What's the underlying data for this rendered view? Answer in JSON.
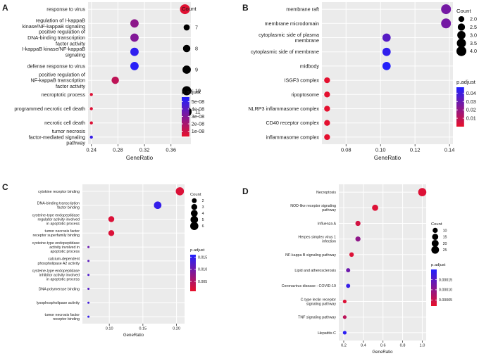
{
  "chart_data": [
    {
      "panel": "A",
      "type": "scatter",
      "xlabel": "GeneRatio",
      "xlim": [
        0.235,
        0.39
      ],
      "xticks": [
        "0.24",
        "0.28",
        "0.32",
        "0.36"
      ],
      "xtick_values": [
        0.24,
        0.28,
        0.32,
        0.36
      ],
      "categories": [
        [
          "response to virus"
        ],
        [
          "regulation of I-kappaB",
          "kinase/NF-kappaB signaling"
        ],
        [
          "positive regulation of",
          "DNA-binding transcription",
          "factor activity"
        ],
        [
          "I-kappaB kinase/NF-kappaB",
          "signaling"
        ],
        [
          "defense response to virus"
        ],
        [
          "positive regulation of",
          "NF-kappaB transcription",
          "factor activity"
        ],
        [
          "necroptotic process"
        ],
        [
          "programmed necrotic cell death"
        ],
        [
          "necrotic cell death"
        ],
        [
          "tumor necrosis",
          "factor-mediated signaling",
          "pathway"
        ]
      ],
      "points": [
        {
          "x": 0.381,
          "count": 11,
          "padj": 5e-09
        },
        {
          "x": 0.305,
          "count": 9,
          "padj": 2.7e-08
        },
        {
          "x": 0.305,
          "count": 9,
          "padj": 3e-08
        },
        {
          "x": 0.305,
          "count": 9,
          "padj": 5.2e-08
        },
        {
          "x": 0.305,
          "count": 9,
          "padj": 5.4e-08
        },
        {
          "x": 0.276,
          "count": 8,
          "padj": 1.4e-08
        },
        {
          "x": 0.24,
          "count": 6,
          "padj": 6e-09
        },
        {
          "x": 0.24,
          "count": 6,
          "padj": 6e-09
        },
        {
          "x": 0.24,
          "count": 6,
          "padj": 6e-09
        },
        {
          "x": 0.24,
          "count": 6,
          "padj": 5e-08
        }
      ],
      "size_legend": {
        "title": "Count",
        "labels": [
          "7",
          "8",
          "9",
          "10",
          "11"
        ],
        "values": [
          7,
          8,
          9,
          10,
          11
        ],
        "min": 6,
        "max": 11
      },
      "color_legend": {
        "title": "p.adjust",
        "labels": [
          "5e-08",
          "4e-08",
          "3e-08",
          "2e-08",
          "1e-08"
        ],
        "values": [
          5e-08,
          4e-08,
          3e-08,
          2e-08,
          1e-08
        ],
        "min": 3e-09,
        "max": 5.6e-08
      }
    },
    {
      "panel": "B",
      "type": "scatter",
      "xlabel": "GeneRatio",
      "xlim": [
        0.066,
        0.142
      ],
      "xticks": [
        "0.08",
        "0.10",
        "0.12",
        "0.14"
      ],
      "xtick_values": [
        0.08,
        0.1,
        0.12,
        0.14
      ],
      "categories": [
        [
          "membrane raft"
        ],
        [
          "membrane microdomain"
        ],
        [
          "cytoplasmic side of plasma",
          "membrane"
        ],
        [
          "cytoplasmic side of membrane"
        ],
        [
          "midbody"
        ],
        [
          "ISGF3 complex"
        ],
        [
          "ripoptosome"
        ],
        [
          "NLRP3 inflammasome complex"
        ],
        [
          "CD40 receptor complex"
        ],
        [
          "inflammasome complex"
        ]
      ],
      "points": [
        {
          "x": 0.138,
          "count": 4,
          "padj": 0.027
        },
        {
          "x": 0.138,
          "count": 4,
          "padj": 0.027
        },
        {
          "x": 0.1035,
          "count": 3,
          "padj": 0.034
        },
        {
          "x": 0.1035,
          "count": 3,
          "padj": 0.043
        },
        {
          "x": 0.1035,
          "count": 3,
          "padj": 0.046
        },
        {
          "x": 0.069,
          "count": 2,
          "padj": 0.001
        },
        {
          "x": 0.069,
          "count": 2,
          "padj": 0.001
        },
        {
          "x": 0.069,
          "count": 2,
          "padj": 0.001
        },
        {
          "x": 0.069,
          "count": 2,
          "padj": 0.001
        },
        {
          "x": 0.069,
          "count": 2,
          "padj": 0.001
        }
      ],
      "size_legend": {
        "title": "Count",
        "labels": [
          "2.0",
          "2.5",
          "3.0",
          "3.5",
          "4.0"
        ],
        "values": [
          2.0,
          2.5,
          3.0,
          3.5,
          4.0
        ],
        "min": 1.6,
        "max": 4.0
      },
      "color_legend": {
        "title": "p.adjust",
        "labels": [
          "0.04",
          "0.03",
          "0.02",
          "0.01"
        ],
        "values": [
          0.04,
          0.03,
          0.02,
          0.01
        ],
        "min": 0.0,
        "max": 0.047
      }
    },
    {
      "panel": "C",
      "type": "scatter",
      "xlabel": "GeneRatio",
      "xlim": [
        0.06,
        0.212
      ],
      "xticks": [
        "0.10",
        "0.15",
        "0.20"
      ],
      "xtick_values": [
        0.1,
        0.15,
        0.2
      ],
      "categories": [
        [
          "cytokine receptor binding"
        ],
        [
          "DNA-binding transcription",
          "factor binding"
        ],
        [
          "cysteine-type endopeptidase",
          "regulator activity involved",
          "in apoptotic process"
        ],
        [
          "tumor necrosis factor",
          "receptor superfamily binding"
        ],
        [
          "cysteine-type endopeptidase",
          "activity involved in",
          "apoptotic process"
        ],
        [
          "calcium-dependent",
          "phospholipase A2 activity"
        ],
        [
          "cysteine-type endopeptidase",
          "inhibitor activity involved",
          "in apoptotic process"
        ],
        [
          "DNA polymerase binding"
        ],
        [
          "lysophospholipase activity"
        ],
        [
          "tumor necrosis factor",
          "receptor binding"
        ]
      ],
      "points": [
        {
          "x": 0.205,
          "count": 6,
          "padj": 0.002
        },
        {
          "x": 0.172,
          "count": 5,
          "padj": 0.0145
        },
        {
          "x": 0.103,
          "count": 3,
          "padj": 0.002
        },
        {
          "x": 0.103,
          "count": 3,
          "padj": 0.002
        },
        {
          "x": 0.069,
          "count": 1,
          "padj": 0.0105
        },
        {
          "x": 0.069,
          "count": 1,
          "padj": 0.0115
        },
        {
          "x": 0.069,
          "count": 1,
          "padj": 0.0125
        },
        {
          "x": 0.069,
          "count": 1,
          "padj": 0.012
        },
        {
          "x": 0.069,
          "count": 1,
          "padj": 0.0135
        },
        {
          "x": 0.069,
          "count": 1,
          "padj": 0.0145
        }
      ],
      "size_legend": {
        "title": "Count",
        "labels": [
          "2",
          "3",
          "4",
          "5",
          "6"
        ],
        "values": [
          2,
          3,
          4,
          5,
          6
        ],
        "min": 1,
        "max": 6
      },
      "color_legend": {
        "title": "p.adjust",
        "labels": [
          "0.015",
          "0.010",
          "0.005"
        ],
        "values": [
          0.015,
          0.01,
          0.005
        ],
        "min": 0.001,
        "max": 0.016
      }
    },
    {
      "panel": "D",
      "type": "scatter",
      "xlabel": "GeneRatio",
      "xlim": [
        0.15,
        1.04
      ],
      "xticks": [
        "0.2",
        "0.4",
        "0.6",
        "0.8",
        "1.0"
      ],
      "xtick_values": [
        0.2,
        0.4,
        0.6,
        0.8,
        1.0
      ],
      "categories": [
        [
          "Necroptosis"
        ],
        [
          "NOD-like receptor signaling",
          "pathway"
        ],
        [
          "Influenza A"
        ],
        [
          "Herpes simplex virus 1",
          "infection"
        ],
        [
          "NF-kappa B signaling pathway"
        ],
        [
          "Lipid and atherosclerosis"
        ],
        [
          "Coronavirus disease - COVID-19"
        ],
        [
          "C-type lectin receptor",
          "signaling pathway"
        ],
        [
          "TNF signaling pathway"
        ],
        [
          "Hepatitis C"
        ]
      ],
      "points": [
        {
          "x": 1.0,
          "count": 29,
          "padj": 3e-05
        },
        {
          "x": 0.52,
          "count": 15,
          "padj": 3e-05
        },
        {
          "x": 0.345,
          "count": 10,
          "padj": 4e-05
        },
        {
          "x": 0.345,
          "count": 10,
          "padj": 0.0001
        },
        {
          "x": 0.28,
          "count": 8,
          "padj": 3e-05
        },
        {
          "x": 0.245,
          "count": 7,
          "padj": 0.00013
        },
        {
          "x": 0.245,
          "count": 7,
          "padj": 0.00018
        },
        {
          "x": 0.21,
          "count": 6,
          "padj": 3e-05
        },
        {
          "x": 0.21,
          "count": 6,
          "padj": 6e-05
        },
        {
          "x": 0.21,
          "count": 6,
          "padj": 0.00019
        }
      ],
      "size_legend": {
        "title": "Count",
        "labels": [
          "10",
          "15",
          "20",
          "25"
        ],
        "values": [
          10,
          15,
          20,
          25
        ],
        "min": 5,
        "max": 29
      },
      "color_legend": {
        "title": "p.adjust",
        "labels": [
          "0.00015",
          "0.00010",
          "0.00005"
        ],
        "values": [
          0.00015,
          0.0001,
          5e-05
        ],
        "min": 2e-05,
        "max": 0.0002
      }
    }
  ],
  "panel_labels": [
    "A",
    "B",
    "C",
    "D"
  ],
  "colors": {
    "low": "#e8102a",
    "high": "#2020ff",
    "panel_bg": "#ebebeb",
    "grid": "#ffffff"
  }
}
